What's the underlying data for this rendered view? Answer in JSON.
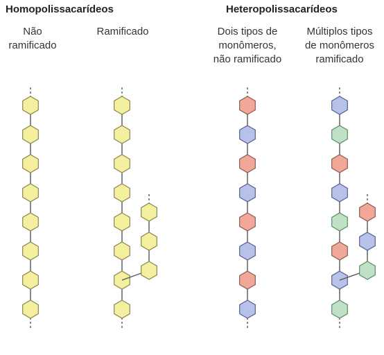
{
  "headings": {
    "homo": "Homopolissacarídeos",
    "hetero": "Heteropolissacarídeos"
  },
  "columns": [
    {
      "label_lines": [
        "Não",
        "ramificado"
      ]
    },
    {
      "label_lines": [
        "Ramificado"
      ]
    },
    {
      "label_lines": [
        "Dois tipos de",
        "monômeros,",
        "não ramificado"
      ]
    },
    {
      "label_lines": [
        "Múltiplos tipos",
        "de monômeros",
        "ramificado"
      ]
    }
  ],
  "colors": {
    "yellow_fill": "#f5f0a0",
    "yellow_stroke": "#8a8550",
    "red_fill": "#f2a898",
    "red_stroke": "#8a5a50",
    "blue_fill": "#b6c2ea",
    "blue_stroke": "#566090",
    "green_fill": "#bfe2c6",
    "green_stroke": "#5a8a66",
    "line": "#555555"
  },
  "chains": {
    "col1_main": [
      "yellow",
      "yellow",
      "yellow",
      "yellow",
      "yellow",
      "yellow",
      "yellow",
      "yellow"
    ],
    "col2_main": [
      "yellow",
      "yellow",
      "yellow",
      "yellow",
      "yellow",
      "yellow",
      "yellow",
      "yellow"
    ],
    "col2_branch": [
      "yellow",
      "yellow",
      "yellow"
    ],
    "col3_main": [
      "red",
      "blue",
      "red",
      "blue",
      "red",
      "blue",
      "red",
      "blue"
    ],
    "col4_main": [
      "blue",
      "green",
      "red",
      "blue",
      "green",
      "red",
      "blue",
      "green"
    ],
    "col4_branch": [
      "red",
      "blue",
      "green"
    ]
  }
}
